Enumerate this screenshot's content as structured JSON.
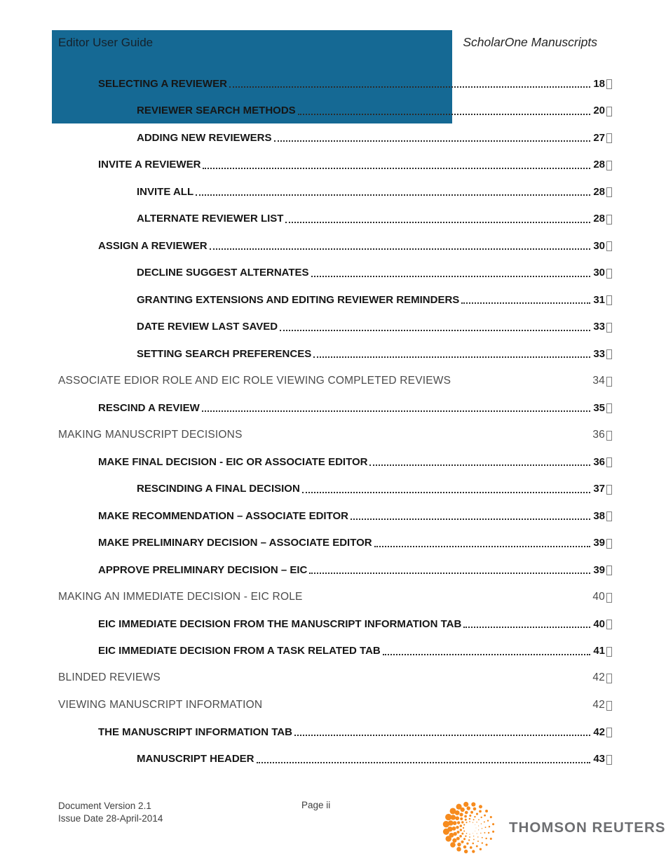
{
  "header": {
    "left": "Editor User Guide",
    "right": "ScholarOne Manuscripts"
  },
  "toc": {
    "entries": [
      {
        "label": "SELECTING A REVIEWER",
        "page": "18",
        "level": 1,
        "dots": true
      },
      {
        "label": "REVIEWER SEARCH METHODS",
        "page": "20",
        "level": 2,
        "dots": true
      },
      {
        "label": "ADDING NEW REVIEWERS",
        "page": "27",
        "level": 2,
        "dots": true
      },
      {
        "label": "INVITE A REVIEWER",
        "page": "28",
        "level": 1,
        "dots": true
      },
      {
        "label": "INVITE ALL",
        "page": "28",
        "level": 2,
        "dots": true
      },
      {
        "label": "ALTERNATE REVIEWER LIST",
        "page": "28",
        "level": 2,
        "dots": true
      },
      {
        "label": "ASSIGN A REVIEWER",
        "page": "30",
        "level": 1,
        "dots": true
      },
      {
        "label": "DECLINE SUGGEST ALTERNATES",
        "page": "30",
        "level": 2,
        "dots": true
      },
      {
        "label": "GRANTING EXTENSIONS AND EDITING REVIEWER REMINDERS",
        "page": "31",
        "level": 2,
        "dots": true
      },
      {
        "label": "DATE REVIEW LAST SAVED",
        "page": "33",
        "level": 2,
        "dots": true
      },
      {
        "label": "SETTING SEARCH PREFERENCES",
        "page": "33",
        "level": 2,
        "dots": true
      },
      {
        "label": "ASSOCIATE EDIOR ROLE AND EIC ROLE VIEWING COMPLETED REVIEWS",
        "page": "34",
        "level": 0,
        "dots": false
      },
      {
        "label": "RESCIND A REVIEW",
        "page": "35",
        "level": 1,
        "dots": true
      },
      {
        "label": "MAKING MANUSCRIPT DECISIONS",
        "page": "36",
        "level": 0,
        "dots": false
      },
      {
        "label": "MAKE FINAL DECISION - EIC OR ASSOCIATE EDITOR",
        "page": "36",
        "level": 1,
        "dots": true
      },
      {
        "label": "RESCINDING A FINAL DECISION",
        "page": "37",
        "level": 2,
        "dots": true
      },
      {
        "label": "MAKE RECOMMENDATION – ASSOCIATE EDITOR",
        "page": "38",
        "level": 1,
        "dots": true
      },
      {
        "label": "MAKE PRELIMINARY DECISION – ASSOCIATE EDITOR",
        "page": "39",
        "level": 1,
        "dots": true
      },
      {
        "label": "APPROVE PRELIMINARY DECISION – EIC",
        "page": "39",
        "level": 1,
        "dots": true
      },
      {
        "label": "MAKING AN IMMEDIATE DECISION - EIC ROLE",
        "page": "40",
        "level": 0,
        "dots": false
      },
      {
        "label": "EIC IMMEDIATE DECISION FROM THE MANUSCRIPT INFORMATION TAB",
        "page": "40",
        "level": 1,
        "dots": true
      },
      {
        "label": "EIC IMMEDIATE DECISION FROM A TASK RELATED TAB",
        "page": "41",
        "level": 1,
        "dots": true
      },
      {
        "label": "BLINDED REVIEWS",
        "page": "42",
        "level": 0,
        "dots": false
      },
      {
        "label": "VIEWING MANUSCRIPT INFORMATION",
        "page": "42",
        "level": 0,
        "dots": false
      },
      {
        "label": "THE MANUSCRIPT INFORMATION TAB",
        "page": "42",
        "level": 1,
        "dots": true
      },
      {
        "label": "MANUSCRIPT HEADER",
        "page": "43",
        "level": 2,
        "dots": true
      }
    ]
  },
  "footer": {
    "doc_version": "Document Version 2.1",
    "issue_date": "Issue Date 28-April-2014",
    "page_label": "Page ii",
    "brand": "THOMSON REUTERS"
  },
  "colors": {
    "highlight_blue": "#156994",
    "logo_orange": "#F68B1E",
    "brand_gray": "#6D6E71"
  }
}
